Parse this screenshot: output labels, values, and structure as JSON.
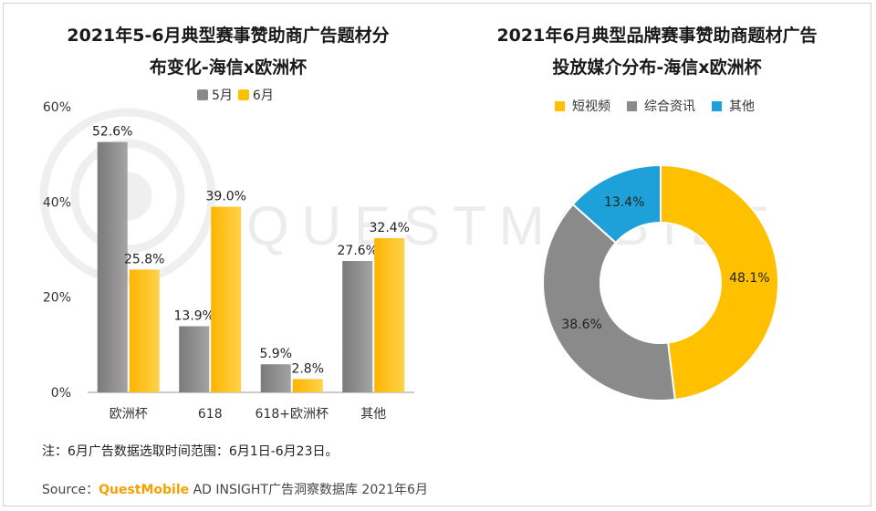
{
  "watermark": "QUESTMOBILE",
  "colors": {
    "may": "#8a8a8a",
    "june": "#ffc000",
    "short_video": "#ffc000",
    "news": "#8a8a8a",
    "other": "#1ea0d8"
  },
  "left": {
    "title_line1": "2021年5-6月典型赛事赞助商广告题材分",
    "title_line2": "布变化-海信x欧洲杯",
    "legend": [
      "5月",
      "6月"
    ]
  },
  "right": {
    "title_line1": "2021年6月典型品牌赛事赞助商题材广告",
    "title_line2": "投放媒介分布-海信x欧洲杯",
    "legend": [
      "短视频",
      "综合资讯",
      "其他"
    ]
  },
  "chart_data": [
    {
      "type": "bar",
      "title": "2021年5-6月典型赛事赞助商广告题材分布变化-海信x欧洲杯",
      "categories": [
        "欧洲杯",
        "618",
        "618+欧洲杯",
        "其他"
      ],
      "series": [
        {
          "name": "5月",
          "values": [
            52.6,
            13.9,
            5.9,
            27.6
          ]
        },
        {
          "name": "6月",
          "values": [
            25.8,
            39.0,
            2.8,
            32.4
          ]
        }
      ],
      "value_suffix": "%",
      "ylim": [
        0,
        60
      ],
      "yticks": [
        0,
        20,
        40,
        60
      ],
      "ytick_labels": [
        "0%",
        "20%",
        "40%",
        "60%"
      ],
      "xlabel": "",
      "ylabel": "",
      "legend_position": "top"
    },
    {
      "type": "pie",
      "style": "donut",
      "title": "2021年6月典型品牌赛事赞助商题材广告投放媒介分布-海信x欧洲杯",
      "labels": [
        "短视频",
        "综合资讯",
        "其他"
      ],
      "values": [
        48.1,
        38.6,
        13.4
      ],
      "value_suffix": "%",
      "legend_position": "top"
    }
  ],
  "footer": {
    "note": "注：6月广告数据选取时间范围：6月1日-6月23日。",
    "source_prefix": "Source：",
    "source_brand": "QuestMobile",
    "source_rest": " AD INSIGHT广告洞察数据库 2021年6月"
  }
}
